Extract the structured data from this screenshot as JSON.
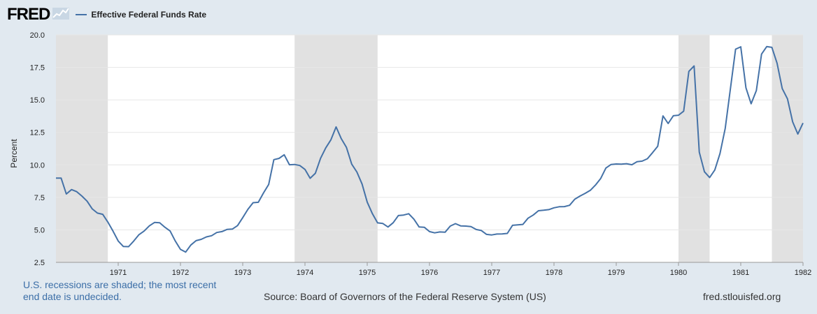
{
  "header": {
    "logo": "FRED",
    "logo_icon": "line-chart-icon",
    "legend_label": "Effective Federal Funds Rate"
  },
  "footer": {
    "recession_note": "U.S. recessions are shaded; the most recent end date is undecided.",
    "source": "Source: Board of Governors of the Federal Reserve System (US)",
    "url": "fred.stlouisfed.org"
  },
  "colors": {
    "line": "#4572a7",
    "recession": "#e1e1e1",
    "background": "#e1e9f0",
    "plot": "#ffffff",
    "grid": "#e6e6e6"
  },
  "chart_data": {
    "type": "line",
    "title": "",
    "xlabel": "",
    "ylabel": "Percent",
    "ylim": [
      2.5,
      20.0
    ],
    "yticks": [
      "2.5",
      "5.0",
      "7.5",
      "10.0",
      "12.5",
      "15.0",
      "17.5",
      "20.0"
    ],
    "xlim": [
      "1970-01",
      "1982-01"
    ],
    "xticks": [
      "1971",
      "1972",
      "1973",
      "1974",
      "1975",
      "1976",
      "1977",
      "1978",
      "1979",
      "1980",
      "1981",
      "1982"
    ],
    "grid": true,
    "legend": "top-left",
    "recessions": [
      [
        "1970-01",
        "1970-11"
      ],
      [
        "1973-11",
        "1975-03"
      ],
      [
        "1980-01",
        "1980-07"
      ],
      [
        "1981-07",
        "1982-01"
      ]
    ],
    "series": [
      {
        "name": "Effective Federal Funds Rate",
        "x": [
          "1970-01",
          "1970-02",
          "1970-03",
          "1970-04",
          "1970-05",
          "1970-06",
          "1970-07",
          "1970-08",
          "1970-09",
          "1970-10",
          "1970-11",
          "1970-12",
          "1971-01",
          "1971-02",
          "1971-03",
          "1971-04",
          "1971-05",
          "1971-06",
          "1971-07",
          "1971-08",
          "1971-09",
          "1971-10",
          "1971-11",
          "1971-12",
          "1972-01",
          "1972-02",
          "1972-03",
          "1972-04",
          "1972-05",
          "1972-06",
          "1972-07",
          "1972-08",
          "1972-09",
          "1972-10",
          "1972-11",
          "1972-12",
          "1973-01",
          "1973-02",
          "1973-03",
          "1973-04",
          "1973-05",
          "1973-06",
          "1973-07",
          "1973-08",
          "1973-09",
          "1973-10",
          "1973-11",
          "1973-12",
          "1974-01",
          "1974-02",
          "1974-03",
          "1974-04",
          "1974-05",
          "1974-06",
          "1974-07",
          "1974-08",
          "1974-09",
          "1974-10",
          "1974-11",
          "1974-12",
          "1975-01",
          "1975-02",
          "1975-03",
          "1975-04",
          "1975-05",
          "1975-06",
          "1975-07",
          "1975-08",
          "1975-09",
          "1975-10",
          "1975-11",
          "1975-12",
          "1976-01",
          "1976-02",
          "1976-03",
          "1976-04",
          "1976-05",
          "1976-06",
          "1976-07",
          "1976-08",
          "1976-09",
          "1976-10",
          "1976-11",
          "1976-12",
          "1977-01",
          "1977-02",
          "1977-03",
          "1977-04",
          "1977-05",
          "1977-06",
          "1977-07",
          "1977-08",
          "1977-09",
          "1977-10",
          "1977-11",
          "1977-12",
          "1978-01",
          "1978-02",
          "1978-03",
          "1978-04",
          "1978-05",
          "1978-06",
          "1978-07",
          "1978-08",
          "1978-09",
          "1978-10",
          "1978-11",
          "1978-12",
          "1979-01",
          "1979-02",
          "1979-03",
          "1979-04",
          "1979-05",
          "1979-06",
          "1979-07",
          "1979-08",
          "1979-09",
          "1979-10",
          "1979-11",
          "1979-12",
          "1980-01",
          "1980-02",
          "1980-03",
          "1980-04",
          "1980-05",
          "1980-06",
          "1980-07",
          "1980-08",
          "1980-09",
          "1980-10",
          "1980-11",
          "1980-12",
          "1981-01",
          "1981-02",
          "1981-03",
          "1981-04",
          "1981-05",
          "1981-06",
          "1981-07",
          "1981-08",
          "1981-09",
          "1981-10",
          "1981-11",
          "1981-12",
          "1982-01"
        ],
        "values": [
          8.98,
          8.98,
          7.76,
          8.1,
          7.94,
          7.6,
          7.21,
          6.61,
          6.29,
          6.2,
          5.6,
          4.9,
          4.14,
          3.72,
          3.71,
          4.15,
          4.63,
          4.91,
          5.31,
          5.57,
          5.55,
          5.2,
          4.91,
          4.14,
          3.5,
          3.29,
          3.83,
          4.17,
          4.27,
          4.46,
          4.55,
          4.8,
          4.87,
          5.04,
          5.06,
          5.33,
          5.94,
          6.58,
          7.09,
          7.12,
          7.84,
          8.49,
          10.4,
          10.5,
          10.78,
          10.01,
          10.03,
          9.95,
          9.65,
          8.97,
          9.35,
          10.51,
          11.31,
          11.93,
          12.92,
          12.01,
          11.34,
          10.06,
          9.45,
          8.53,
          7.13,
          6.24,
          5.54,
          5.49,
          5.22,
          5.55,
          6.1,
          6.14,
          6.24,
          5.82,
          5.22,
          5.2,
          4.87,
          4.77,
          4.84,
          4.82,
          5.29,
          5.48,
          5.31,
          5.29,
          5.25,
          5.03,
          4.95,
          4.65,
          4.61,
          4.68,
          4.69,
          4.73,
          5.35,
          5.39,
          5.42,
          5.9,
          6.14,
          6.47,
          6.51,
          6.56,
          6.7,
          6.78,
          6.79,
          6.89,
          7.36,
          7.6,
          7.81,
          8.04,
          8.45,
          8.96,
          9.76,
          10.03,
          10.07,
          10.06,
          10.09,
          10.01,
          10.24,
          10.29,
          10.47,
          10.94,
          11.43,
          13.77,
          13.18,
          13.78,
          13.82,
          14.13,
          17.19,
          17.61,
          10.98,
          9.47,
          9.03,
          9.61,
          10.87,
          12.81,
          15.85,
          18.9,
          19.08,
          15.93,
          14.7,
          15.72,
          18.52,
          19.1,
          19.04,
          17.82,
          15.87,
          15.08,
          13.31,
          12.37,
          13.22
        ]
      }
    ]
  }
}
